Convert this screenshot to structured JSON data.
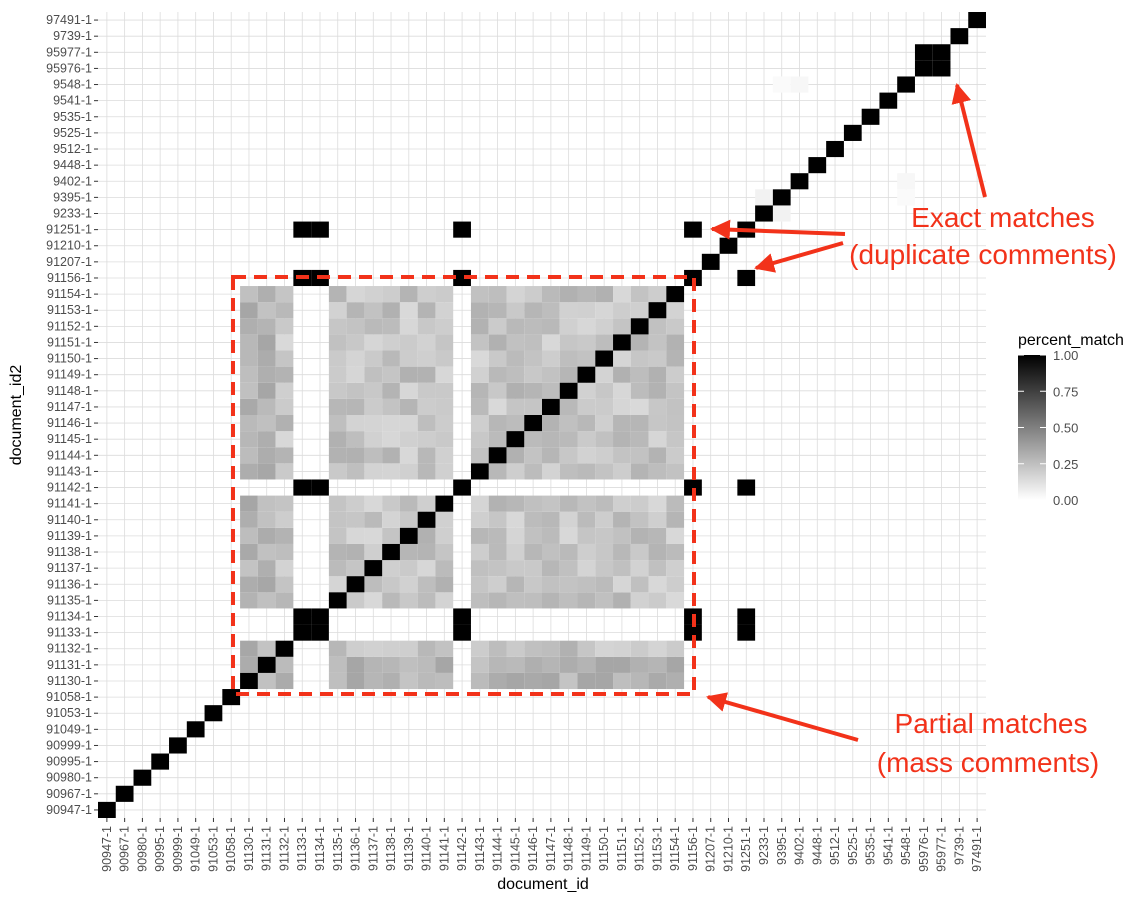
{
  "chart_data": {
    "type": "heatmap",
    "title": "",
    "xlabel": "document_id",
    "ylabel": "document_id2",
    "categories": [
      "90947-1",
      "90967-1",
      "90980-1",
      "90995-1",
      "90999-1",
      "91049-1",
      "91053-1",
      "91058-1",
      "91130-1",
      "91131-1",
      "91132-1",
      "91133-1",
      "91134-1",
      "91135-1",
      "91136-1",
      "91137-1",
      "91138-1",
      "91139-1",
      "91140-1",
      "91141-1",
      "91142-1",
      "91143-1",
      "91144-1",
      "91145-1",
      "91146-1",
      "91147-1",
      "91148-1",
      "91149-1",
      "91150-1",
      "91151-1",
      "91152-1",
      "91153-1",
      "91154-1",
      "91156-1",
      "91207-1",
      "91210-1",
      "91251-1",
      "9233-1",
      "9395-1",
      "9402-1",
      "9448-1",
      "9512-1",
      "9525-1",
      "9535-1",
      "9541-1",
      "9548-1",
      "95976-1",
      "95977-1",
      "9739-1",
      "97491-1"
    ],
    "value_range": [
      0,
      1
    ],
    "diagonal_value": 1.0,
    "exact_matches": [
      {
        "x": "91133-1",
        "y": "91134-1",
        "value": 1.0
      },
      {
        "x": "91133-1",
        "y": "91142-1",
        "value": 1.0
      },
      {
        "x": "91133-1",
        "y": "91156-1",
        "value": 1.0
      },
      {
        "x": "91133-1",
        "y": "91251-1",
        "value": 1.0
      },
      {
        "x": "91134-1",
        "y": "91142-1",
        "value": 1.0
      },
      {
        "x": "91134-1",
        "y": "91156-1",
        "value": 1.0
      },
      {
        "x": "91134-1",
        "y": "91251-1",
        "value": 1.0
      },
      {
        "x": "91142-1",
        "y": "91156-1",
        "value": 1.0
      },
      {
        "x": "91142-1",
        "y": "91251-1",
        "value": 1.0
      },
      {
        "x": "91156-1",
        "y": "91251-1",
        "value": 1.0
      },
      {
        "x": "95976-1",
        "y": "95977-1",
        "value": 1.0
      }
    ],
    "partial_match_group": [
      "91130-1",
      "91131-1",
      "91132-1",
      "91135-1",
      "91136-1",
      "91137-1",
      "91138-1",
      "91139-1",
      "91140-1",
      "91141-1",
      "91143-1",
      "91144-1",
      "91145-1",
      "91146-1",
      "91147-1",
      "91148-1",
      "91149-1",
      "91150-1",
      "91151-1",
      "91152-1",
      "91153-1",
      "91154-1"
    ],
    "partial_match_values_approx": [
      0.15,
      0.35
    ],
    "faint_matches": [
      {
        "x": "9233-1",
        "y": "9395-1",
        "value": 0.05
      },
      {
        "x": "9402-1",
        "y": "9548-1",
        "value": 0.03
      },
      {
        "x": "9395-1",
        "y": "9548-1",
        "value": 0.02
      }
    ],
    "legend": {
      "title": "percent_match",
      "ticks": [
        "1.00",
        "0.75",
        "0.50",
        "0.25",
        "0.00"
      ],
      "placement": "right"
    },
    "grid": true,
    "annotations": [
      {
        "text_lines": [
          "Exact matches",
          "(duplicate comments)"
        ]
      },
      {
        "text_lines": [
          "Partial matches",
          "(mass comments)"
        ]
      }
    ],
    "annotation_color": "#f2321a"
  }
}
